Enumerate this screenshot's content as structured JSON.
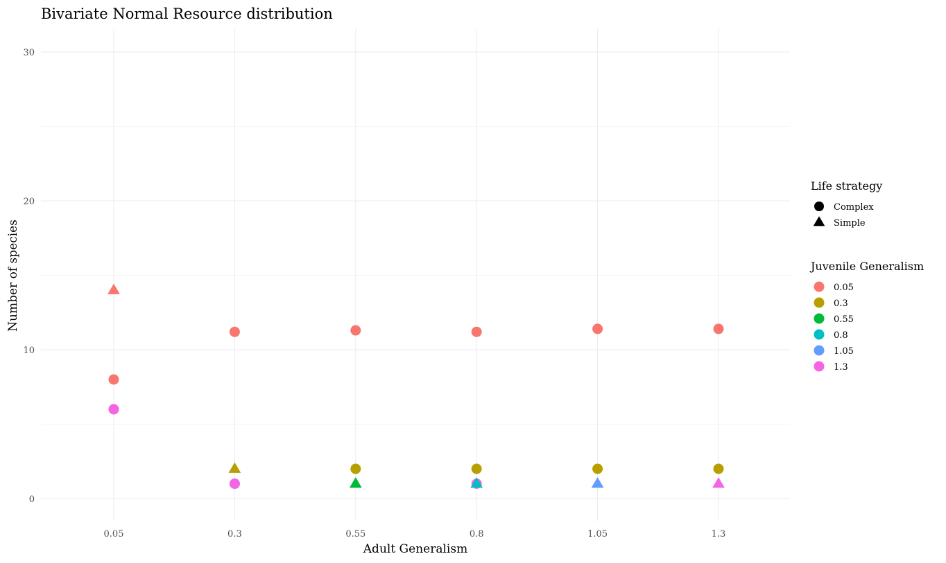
{
  "chart_data": {
    "type": "scatter",
    "title": "Bivariate Normal Resource distribution",
    "xlabel": "Adult Generalism",
    "ylabel": "Number of species",
    "x_categories": [
      "0.05",
      "0.3",
      "0.55",
      "0.8",
      "1.05",
      "1.3"
    ],
    "ylim": [
      -1.5,
      31.5
    ],
    "y_ticks": [
      0,
      10,
      20,
      30
    ],
    "y_minor_ticks": [
      5,
      15,
      25
    ],
    "grid": true,
    "legend_position": "right",
    "legends": {
      "shape": {
        "title": "Life strategy",
        "entries": [
          {
            "label": "Complex",
            "shape": "circle"
          },
          {
            "label": "Simple",
            "shape": "triangle"
          }
        ]
      },
      "color": {
        "title": "Juvenile Generalism",
        "entries": [
          {
            "label": "0.05",
            "color": "#F8766D"
          },
          {
            "label": "0.3",
            "color": "#B79F00"
          },
          {
            "label": "0.55",
            "color": "#00BA38"
          },
          {
            "label": "0.8",
            "color": "#00BFC4"
          },
          {
            "label": "1.05",
            "color": "#619CFF"
          },
          {
            "label": "1.3",
            "color": "#F564E3"
          }
        ]
      }
    },
    "points": [
      {
        "x": "0.05",
        "y": 14,
        "shape": "triangle",
        "juvenile": "0.05"
      },
      {
        "x": "0.05",
        "y": 8,
        "shape": "circle",
        "juvenile": "0.05"
      },
      {
        "x": "0.05",
        "y": 6,
        "shape": "circle",
        "juvenile": "0.3"
      },
      {
        "x": "0.05",
        "y": 6,
        "shape": "circle",
        "juvenile": "1.3"
      },
      {
        "x": "0.3",
        "y": 11.2,
        "shape": "circle",
        "juvenile": "0.05"
      },
      {
        "x": "0.3",
        "y": 2,
        "shape": "triangle",
        "juvenile": "0.3"
      },
      {
        "x": "0.3",
        "y": 1,
        "shape": "circle",
        "juvenile": "1.05"
      },
      {
        "x": "0.3",
        "y": 1,
        "shape": "circle",
        "juvenile": "1.3"
      },
      {
        "x": "0.55",
        "y": 11.3,
        "shape": "circle",
        "juvenile": "0.05"
      },
      {
        "x": "0.55",
        "y": 2,
        "shape": "circle",
        "juvenile": "0.3"
      },
      {
        "x": "0.55",
        "y": 1,
        "shape": "triangle",
        "juvenile": "0.55"
      },
      {
        "x": "0.8",
        "y": 11.2,
        "shape": "circle",
        "juvenile": "0.05"
      },
      {
        "x": "0.8",
        "y": 2,
        "shape": "circle",
        "juvenile": "0.3"
      },
      {
        "x": "0.8",
        "y": 1,
        "shape": "circle",
        "juvenile": "1.3"
      },
      {
        "x": "0.8",
        "y": 1,
        "shape": "triangle",
        "juvenile": "0.8"
      },
      {
        "x": "1.05",
        "y": 11.4,
        "shape": "circle",
        "juvenile": "0.05"
      },
      {
        "x": "1.05",
        "y": 2,
        "shape": "circle",
        "juvenile": "0.3"
      },
      {
        "x": "1.05",
        "y": 1,
        "shape": "triangle",
        "juvenile": "1.05"
      },
      {
        "x": "1.3",
        "y": 11.4,
        "shape": "circle",
        "juvenile": "0.05"
      },
      {
        "x": "1.3",
        "y": 2,
        "shape": "circle",
        "juvenile": "0.3"
      },
      {
        "x": "1.3",
        "y": 1,
        "shape": "triangle",
        "juvenile": "1.3"
      }
    ]
  }
}
